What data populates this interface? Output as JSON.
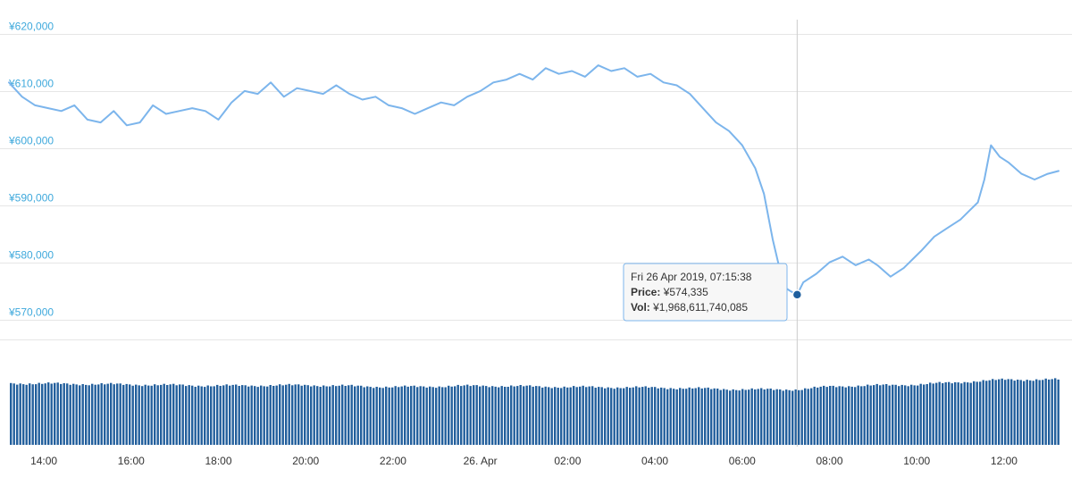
{
  "colors": {
    "line": "#7cb5ec",
    "axis_label": "#3fa9dc",
    "volume": "#225f9c",
    "grid": "#e6e6e6",
    "crosshair": "#cccccc",
    "marker": "#1f5f9e",
    "tooltip_border": "#7cb5ec",
    "tooltip_bg": "#f7f7f7"
  },
  "tooltip": {
    "date_line": "Fri 26 Apr 2019, 07:15:38",
    "price_label": "Price:",
    "price_value": "¥574,335",
    "vol_label": "Vol:",
    "vol_value": "¥1,968,611,740,085"
  },
  "chart_data": {
    "type": "line",
    "y_ticks": [
      "¥570,000",
      "¥580,000",
      "¥590,000",
      "¥600,000",
      "¥610,000",
      "¥620,000"
    ],
    "y_tick_values": [
      570000,
      580000,
      590000,
      600000,
      610000,
      620000
    ],
    "x_ticks": [
      "14:00",
      "16:00",
      "18:00",
      "20:00",
      "22:00",
      "26. Apr",
      "02:00",
      "04:00",
      "06:00",
      "08:00",
      "10:00",
      "12:00"
    ],
    "x_tick_hours": [
      14,
      16,
      18,
      20,
      22,
      24,
      26,
      28,
      30,
      32,
      34,
      36
    ],
    "xlim_hours": [
      13.2,
      37.25
    ],
    "ylim": [
      566500,
      622500
    ],
    "grid": true,
    "highlight": {
      "hour": 31.26,
      "price": 574335
    },
    "price_series": {
      "name": "Price",
      "hours": [
        13.2,
        13.5,
        13.8,
        14.1,
        14.4,
        14.7,
        15.0,
        15.3,
        15.6,
        15.9,
        16.2,
        16.5,
        16.8,
        17.1,
        17.4,
        17.7,
        18.0,
        18.3,
        18.6,
        18.9,
        19.2,
        19.5,
        19.8,
        20.1,
        20.4,
        20.7,
        21.0,
        21.3,
        21.6,
        21.9,
        22.2,
        22.5,
        22.8,
        23.1,
        23.4,
        23.7,
        24.0,
        24.3,
        24.6,
        24.9,
        25.2,
        25.5,
        25.8,
        26.1,
        26.4,
        26.7,
        27.0,
        27.3,
        27.6,
        27.9,
        28.2,
        28.5,
        28.8,
        29.1,
        29.4,
        29.7,
        30.0,
        30.3,
        30.5,
        30.7,
        30.9,
        31.0,
        31.1,
        31.26,
        31.4,
        31.7,
        32.0,
        32.3,
        32.6,
        32.9,
        33.1,
        33.4,
        33.7,
        33.9,
        34.1,
        34.4,
        34.7,
        35.0,
        35.2,
        35.4,
        35.55,
        35.7,
        35.9,
        36.1,
        36.4,
        36.7,
        37.0,
        37.25
      ],
      "values": [
        611500,
        609000,
        607500,
        607000,
        606500,
        607500,
        605000,
        604500,
        606500,
        604000,
        604500,
        607500,
        606000,
        606500,
        607000,
        606500,
        605000,
        608000,
        610000,
        609500,
        611500,
        609000,
        610500,
        610000,
        609500,
        611000,
        609500,
        608500,
        609000,
        607500,
        607000,
        606000,
        607000,
        608000,
        607500,
        609000,
        610000,
        611500,
        612000,
        613000,
        612000,
        614000,
        613000,
        613500,
        612500,
        614500,
        613500,
        614000,
        612500,
        613000,
        611500,
        611000,
        609500,
        607000,
        604500,
        603000,
        600500,
        596500,
        592000,
        584000,
        577500,
        575500,
        575000,
        574335,
        576500,
        578000,
        580000,
        581000,
        579500,
        580500,
        579500,
        577500,
        579000,
        580500,
        582000,
        584500,
        586000,
        587500,
        589000,
        590500,
        594500,
        600500,
        598500,
        597500,
        595500,
        594500,
        595500,
        596000
      ]
    },
    "volume_series": {
      "name": "Vol",
      "hours": [
        13.2,
        16.0,
        18.0,
        20.0,
        22.0,
        24.0,
        26.0,
        28.0,
        30.0,
        31.3,
        32.0,
        34.0,
        35.5,
        36.0,
        37.25
      ],
      "values": [
        100,
        98,
        96,
        97,
        94,
        96,
        94,
        93,
        90,
        90,
        95,
        98,
        104,
        106,
        106
      ]
    }
  }
}
